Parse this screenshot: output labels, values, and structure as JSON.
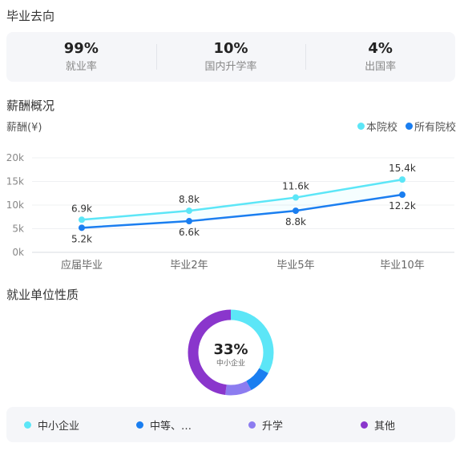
{
  "sections": {
    "destination_title": "毕业去向",
    "salary_title": "薪酬概况",
    "nature_title": "就业单位性质"
  },
  "stats": [
    {
      "value": "99%",
      "label": "就业率"
    },
    {
      "value": "10%",
      "label": "国内升学率"
    },
    {
      "value": "4%",
      "label": "出国率"
    }
  ],
  "chart_data": [
    {
      "type": "line",
      "ylabel": "薪酬(¥)",
      "categories": [
        "应届毕业",
        "毕业2年",
        "毕业5年",
        "毕业10年"
      ],
      "yticks": [
        "0k",
        "5k",
        "10k",
        "15k",
        "20k"
      ],
      "ylim": [
        0,
        20
      ],
      "grid": true,
      "legend": "top-right",
      "series": [
        {
          "name": "本院校",
          "values": [
            6.9,
            8.8,
            11.6,
            15.4
          ],
          "labels": [
            "6.9k",
            "8.8k",
            "11.6k",
            "15.4k"
          ],
          "color": "#5ce6f7"
        },
        {
          "name": "所有院校",
          "values": [
            5.2,
            6.6,
            8.8,
            12.2
          ],
          "labels": [
            "5.2k",
            "6.6k",
            "8.8k",
            "12.2k"
          ],
          "color": "#1a7ef0"
        }
      ]
    },
    {
      "type": "pie",
      "center_value": "33%",
      "center_label": "中小企业",
      "series": [
        {
          "name": "中小企业",
          "value": 33,
          "color": "#5ce6f7"
        },
        {
          "name": "中等、…",
          "value": 9,
          "color": "#1a7ef0"
        },
        {
          "name": "升学",
          "value": 10,
          "color": "#8c7cf0"
        },
        {
          "name": "其他",
          "value": 48,
          "color": "#8a36cc"
        }
      ]
    }
  ]
}
